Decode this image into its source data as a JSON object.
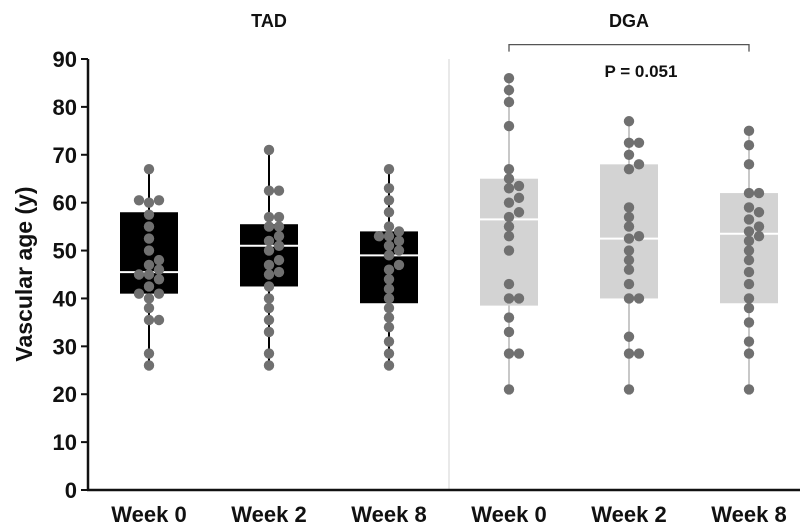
{
  "chart_data": {
    "type": "box",
    "ylabel": "Vascular age (y)",
    "ylim": [
      0,
      90
    ],
    "yticks": [
      0,
      10,
      20,
      30,
      40,
      50,
      60,
      70,
      80,
      90
    ],
    "grid": false,
    "groups": [
      {
        "title": "TAD",
        "box_color": "#000000",
        "median_color": "#ffffff",
        "whisker_color": "#000000",
        "boxes": [
          {
            "category": "Week 0",
            "whisker_low": 26,
            "q1": 41,
            "median": 45.5,
            "q3": 58,
            "whisker_high": 67,
            "points": [
              26,
              28.5,
              35.5,
              35.5,
              38,
              40,
              41,
              41,
              42.5,
              44,
              45,
              45,
              46,
              47,
              48,
              50,
              52.5,
              55,
              57.5,
              60,
              60.5,
              60.5,
              67
            ]
          },
          {
            "category": "Week 2",
            "whisker_low": 26,
            "q1": 42.5,
            "median": 51,
            "q3": 55.5,
            "whisker_high": 71,
            "points": [
              26,
              28.5,
              33,
              35.5,
              38,
              40,
              42.5,
              45,
              45.5,
              47,
              48,
              50,
              51,
              52,
              53,
              55,
              55,
              57,
              57,
              62.5,
              62.5,
              71
            ]
          },
          {
            "category": "Week 8",
            "whisker_low": 26,
            "q1": 39,
            "median": 49,
            "q3": 54,
            "whisker_high": 67,
            "points": [
              26,
              28.5,
              31,
              34,
              36,
              38,
              40,
              42,
              44,
              46,
              47,
              49,
              50,
              51,
              52,
              53,
              53,
              54,
              55,
              58,
              60.5,
              63,
              67
            ]
          }
        ]
      },
      {
        "title": "DGA",
        "box_color": "#d3d3d3",
        "median_color": "#ffffff",
        "whisker_color": "#c8c8c8",
        "boxes": [
          {
            "category": "Week 0",
            "whisker_low": 21,
            "q1": 38.5,
            "median": 56.5,
            "q3": 65,
            "whisker_high": 86,
            "points": [
              21,
              28.5,
              28.5,
              33,
              36,
              40,
              40,
              43,
              50,
              53,
              55,
              57,
              58,
              60,
              61,
              63,
              63.5,
              65,
              67,
              76,
              81,
              83.5,
              86
            ]
          },
          {
            "category": "Week 2",
            "whisker_low": 21,
            "q1": 40,
            "median": 52.5,
            "q3": 68,
            "whisker_high": 77,
            "points": [
              21,
              28.5,
              28.5,
              32,
              40,
              40,
              43,
              46,
              48,
              50,
              52.5,
              53,
              55,
              57,
              59,
              67,
              68,
              70,
              72.5,
              72.5,
              77
            ]
          },
          {
            "category": "Week 8",
            "whisker_low": 21,
            "q1": 39,
            "median": 53.5,
            "q3": 62,
            "whisker_high": 75,
            "points": [
              21,
              28.5,
              31,
              35,
              38,
              40,
              43,
              45.5,
              48,
              50,
              52,
              53,
              54,
              55,
              56.5,
              58,
              59,
              62,
              62,
              68,
              72,
              75
            ]
          }
        ]
      }
    ],
    "annotation": {
      "text": "P = 0.051",
      "from_box": 3,
      "to_box": 5,
      "bracket_y": 93
    }
  }
}
